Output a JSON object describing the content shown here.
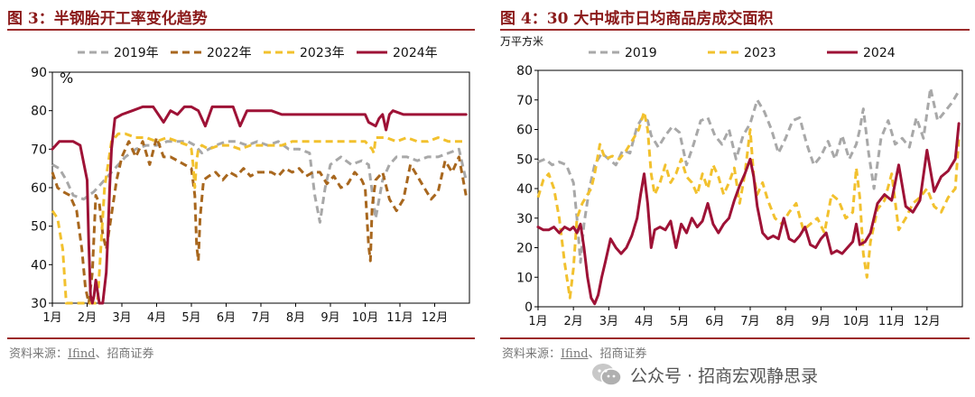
{
  "left": {
    "title": "图 3：半钢胎开工率变化趋势",
    "source_prefix": "资料来源：",
    "source_link": "Ifind",
    "source_suffix": "、招商证券",
    "chart_data": {
      "type": "line",
      "ylabel": "%",
      "ylim": [
        30,
        90
      ],
      "yticks": [
        30,
        40,
        50,
        60,
        70,
        80,
        90
      ],
      "x_unit": "month",
      "xlim": [
        1,
        13
      ],
      "xticks": [
        "1月",
        "2月",
        "3月",
        "4月",
        "5月",
        "6月",
        "7月",
        "8月",
        "9月",
        "10月",
        "11月",
        "12月"
      ],
      "legend_position": "top",
      "grid": false,
      "series": [
        {
          "name": "2019年",
          "color": "#a8a8a8",
          "dash": true,
          "x": [
            1.0,
            1.2,
            1.4,
            1.6,
            1.9,
            2.2,
            2.5,
            2.8,
            3.1,
            3.4,
            3.7,
            4.0,
            4.3,
            4.6,
            4.9,
            5.1,
            5.3,
            5.5,
            5.7,
            6.0,
            6.3,
            6.6,
            6.9,
            7.2,
            7.5,
            7.8,
            8.1,
            8.4,
            8.55,
            8.7,
            8.85,
            9.0,
            9.3,
            9.6,
            9.9,
            10.1,
            10.3,
            10.5,
            10.7,
            10.9,
            11.2,
            11.5,
            11.8,
            12.1,
            12.4,
            12.7,
            12.9
          ],
          "y": [
            66,
            65,
            62,
            58,
            57,
            59,
            62,
            65,
            68,
            70,
            71,
            71,
            72,
            72,
            72,
            71,
            69,
            70,
            71,
            72,
            72,
            71,
            72,
            71,
            72,
            70,
            70,
            69,
            58,
            51,
            60,
            66,
            68,
            66,
            67,
            66,
            52,
            62,
            66,
            68,
            68,
            67,
            68,
            68,
            69,
            70,
            62
          ]
        },
        {
          "name": "2022年",
          "color": "#a8671e",
          "dash": true,
          "x": [
            1.0,
            1.15,
            1.3,
            1.5,
            1.7,
            1.85,
            1.95,
            2.05,
            2.15,
            2.25,
            2.35,
            2.45,
            2.55,
            2.7,
            2.85,
            3.0,
            3.2,
            3.4,
            3.6,
            3.8,
            4.0,
            4.2,
            4.4,
            4.6,
            4.8,
            5.0,
            5.1,
            5.15,
            5.2,
            5.25,
            5.35,
            5.5,
            5.7,
            5.9,
            6.1,
            6.3,
            6.5,
            6.7,
            6.9,
            7.1,
            7.3,
            7.5,
            7.7,
            7.9,
            8.1,
            8.3,
            8.5,
            8.7,
            8.9,
            9.1,
            9.3,
            9.5,
            9.7,
            9.9,
            10.0,
            10.1,
            10.15,
            10.2,
            10.3,
            10.5,
            10.7,
            10.9,
            11.1,
            11.3,
            11.5,
            11.7,
            11.9,
            12.1,
            12.3,
            12.5,
            12.7,
            12.9
          ],
          "y": [
            64,
            60,
            59,
            58,
            54,
            44,
            34,
            30,
            38,
            58,
            56,
            48,
            44,
            53,
            62,
            68,
            72,
            68,
            72,
            66,
            73,
            68,
            68,
            67,
            66,
            65,
            58,
            45,
            41,
            52,
            62,
            63,
            64,
            62,
            64,
            63,
            65,
            63,
            64,
            64,
            64,
            63,
            65,
            64,
            65,
            63,
            64,
            64,
            61,
            63,
            60,
            61,
            64,
            62,
            60,
            45,
            41,
            55,
            62,
            64,
            57,
            54,
            57,
            66,
            63,
            60,
            57,
            59,
            67,
            64,
            68,
            58
          ]
        },
        {
          "name": "2023年",
          "color": "#f2c12e",
          "dash": true,
          "x": [
            1.0,
            1.15,
            1.3,
            1.4,
            1.5,
            1.6,
            1.75,
            1.85,
            1.95,
            2.1,
            2.3,
            2.5,
            2.7,
            2.9,
            3.1,
            3.4,
            3.7,
            4.0,
            4.3,
            4.6,
            4.9,
            5.0,
            5.05,
            5.1,
            5.15,
            5.2,
            5.3,
            5.5,
            5.8,
            6.1,
            6.4,
            6.7,
            7.0,
            7.3,
            7.6,
            7.9,
            8.2,
            8.5,
            8.8,
            9.1,
            9.4,
            9.7,
            10.0,
            10.2,
            10.25,
            10.3,
            10.4,
            10.6,
            10.9,
            11.2,
            11.5,
            11.8,
            12.1,
            12.4,
            12.7,
            12.9
          ],
          "y": [
            54,
            52,
            44,
            30,
            30,
            30,
            30,
            30,
            30,
            30,
            30,
            60,
            72,
            74,
            74,
            73,
            73,
            72,
            73,
            72,
            71,
            70,
            66,
            60,
            67,
            70,
            71,
            70,
            71,
            71,
            70,
            71,
            71,
            71,
            71,
            72,
            72,
            72,
            72,
            72,
            72,
            72,
            72,
            70,
            69,
            73,
            73,
            73,
            72,
            73,
            72,
            72,
            73,
            72,
            72,
            72
          ]
        },
        {
          "name": "2024年",
          "color": "#9e1236",
          "dash": false,
          "x": [
            1.0,
            1.2,
            1.4,
            1.6,
            1.8,
            2.0,
            2.05,
            2.1,
            2.15,
            2.2,
            2.25,
            2.35,
            2.45,
            2.55,
            2.6,
            2.65,
            2.7,
            2.8,
            3.0,
            3.3,
            3.6,
            3.9,
            4.2,
            4.4,
            4.6,
            4.8,
            5.0,
            5.2,
            5.4,
            5.6,
            5.8,
            6.0,
            6.2,
            6.4,
            6.6,
            6.8,
            7.0,
            7.3,
            7.6,
            7.9,
            8.2,
            8.5,
            8.8,
            9.1,
            9.4,
            9.7,
            10.0,
            10.1,
            10.3,
            10.4,
            10.5,
            10.6,
            10.7,
            10.8,
            11.1,
            11.4,
            11.7,
            12.0,
            12.3,
            12.6,
            12.9
          ],
          "y": [
            70,
            72,
            72,
            72,
            71,
            62,
            45,
            32,
            30,
            32,
            36,
            30,
            30,
            38,
            48,
            60,
            70,
            78,
            79,
            80,
            81,
            81,
            77,
            80,
            79,
            81,
            81,
            80,
            76,
            81,
            81,
            81,
            81,
            76,
            80,
            80,
            80,
            80,
            79,
            79,
            79,
            79,
            79,
            79,
            79,
            79,
            79,
            77,
            76,
            78,
            79,
            75,
            79,
            80,
            79,
            79,
            79,
            79,
            79,
            79,
            79
          ]
        }
      ]
    }
  },
  "right": {
    "title": "图 4：30 大中城市日均商品房成交面积",
    "source_prefix": "资料来源：",
    "source_link": "Ifind",
    "source_suffix": "、招商证券",
    "chart_data": {
      "type": "line",
      "ylabel": "万平方米",
      "ylim": [
        0,
        80
      ],
      "yticks": [
        0,
        10,
        20,
        30,
        40,
        50,
        60,
        70,
        80
      ],
      "x_unit": "month",
      "xlim": [
        1,
        13
      ],
      "xticks": [
        "1月",
        "2月",
        "3月",
        "4月",
        "5月",
        "6月",
        "7月",
        "8月",
        "9月",
        "10月",
        "11月",
        "12月"
      ],
      "legend_position": "top",
      "grid": false,
      "series": [
        {
          "name": "2019",
          "color": "#a8a8a8",
          "dash": true,
          "x": [
            1.0,
            1.2,
            1.4,
            1.6,
            1.8,
            2.0,
            2.1,
            2.2,
            2.3,
            2.45,
            2.6,
            2.8,
            3.0,
            3.2,
            3.4,
            3.6,
            3.8,
            3.95,
            4.1,
            4.2,
            4.4,
            4.6,
            4.8,
            5.0,
            5.2,
            5.4,
            5.6,
            5.8,
            6.0,
            6.2,
            6.4,
            6.6,
            6.8,
            7.0,
            7.2,
            7.4,
            7.6,
            7.8,
            8.0,
            8.2,
            8.4,
            8.6,
            8.8,
            9.0,
            9.2,
            9.4,
            9.6,
            9.8,
            10.0,
            10.1,
            10.2,
            10.35,
            10.5,
            10.7,
            10.9,
            11.1,
            11.3,
            11.5,
            11.7,
            11.9,
            12.1,
            12.3,
            12.5,
            12.7,
            12.9
          ],
          "y": [
            49,
            50,
            48,
            49,
            48,
            42,
            30,
            15,
            28,
            40,
            48,
            52,
            50,
            48,
            53,
            52,
            61,
            64,
            63,
            58,
            54,
            58,
            61,
            59,
            48,
            55,
            63,
            64,
            58,
            55,
            60,
            50,
            58,
            62,
            70,
            66,
            60,
            52,
            57,
            63,
            64,
            55,
            48,
            51,
            56,
            50,
            58,
            50,
            55,
            60,
            67,
            52,
            40,
            57,
            63,
            55,
            57,
            54,
            64,
            57,
            74,
            63,
            66,
            69,
            73
          ]
        },
        {
          "name": "2023",
          "color": "#f2c12e",
          "dash": true,
          "x": [
            1.0,
            1.15,
            1.3,
            1.45,
            1.6,
            1.75,
            1.9,
            2.0,
            2.1,
            2.25,
            2.4,
            2.5,
            2.6,
            2.75,
            2.9,
            3.1,
            3.3,
            3.5,
            3.7,
            3.85,
            4.0,
            4.1,
            4.2,
            4.3,
            4.45,
            4.6,
            4.75,
            4.9,
            5.05,
            5.2,
            5.35,
            5.5,
            5.65,
            5.8,
            5.95,
            6.1,
            6.25,
            6.4,
            6.55,
            6.7,
            6.85,
            7.0,
            7.1,
            7.2,
            7.35,
            7.5,
            7.7,
            7.9,
            8.1,
            8.3,
            8.5,
            8.7,
            8.9,
            9.1,
            9.3,
            9.5,
            9.7,
            9.9,
            10.0,
            10.1,
            10.2,
            10.3,
            10.4,
            10.6,
            10.8,
            11.0,
            11.2,
            11.4,
            11.6,
            11.8,
            12.0,
            12.2,
            12.4,
            12.6,
            12.8,
            12.9
          ],
          "y": [
            37,
            43,
            45,
            40,
            30,
            15,
            3,
            13,
            30,
            35,
            38,
            40,
            45,
            55,
            50,
            51,
            50,
            53,
            57,
            60,
            66,
            60,
            45,
            38,
            42,
            48,
            42,
            45,
            50,
            44,
            42,
            38,
            45,
            40,
            48,
            44,
            38,
            42,
            47,
            35,
            45,
            60,
            44,
            38,
            42,
            36,
            30,
            28,
            32,
            35,
            26,
            28,
            30,
            25,
            38,
            36,
            30,
            32,
            47,
            37,
            18,
            10,
            22,
            33,
            36,
            45,
            26,
            30,
            35,
            37,
            40,
            34,
            32,
            37,
            40,
            57
          ]
        },
        {
          "name": "2024",
          "color": "#9e1236",
          "dash": false,
          "x": [
            1.0,
            1.15,
            1.3,
            1.45,
            1.6,
            1.75,
            1.9,
            2.0,
            2.1,
            2.2,
            2.3,
            2.4,
            2.5,
            2.6,
            2.7,
            2.8,
            2.9,
            3.05,
            3.2,
            3.35,
            3.5,
            3.65,
            3.8,
            3.9,
            4.0,
            4.1,
            4.2,
            4.3,
            4.45,
            4.6,
            4.75,
            4.9,
            5.05,
            5.2,
            5.35,
            5.5,
            5.65,
            5.8,
            5.95,
            6.1,
            6.25,
            6.4,
            6.55,
            6.7,
            6.85,
            7.0,
            7.1,
            7.2,
            7.35,
            7.5,
            7.65,
            7.8,
            7.95,
            8.1,
            8.25,
            8.4,
            8.55,
            8.7,
            8.85,
            9.0,
            9.15,
            9.3,
            9.45,
            9.6,
            9.75,
            9.9,
            10.0,
            10.1,
            10.25,
            10.4,
            10.6,
            10.8,
            11.0,
            11.2,
            11.4,
            11.6,
            11.8,
            12.0,
            12.2,
            12.4,
            12.6,
            12.8,
            12.9
          ],
          "y": [
            27,
            26,
            26,
            27,
            25,
            27,
            26,
            27,
            25,
            28,
            20,
            10,
            3,
            1,
            4,
            10,
            15,
            23,
            20,
            18,
            20,
            24,
            30,
            38,
            45,
            35,
            20,
            26,
            27,
            26,
            29,
            20,
            28,
            25,
            30,
            27,
            29,
            35,
            28,
            25,
            28,
            30,
            36,
            41,
            45,
            50,
            44,
            34,
            25,
            23,
            24,
            23,
            30,
            23,
            22,
            24,
            27,
            21,
            20,
            23,
            25,
            18,
            19,
            18,
            20,
            22,
            28,
            21,
            22,
            25,
            35,
            38,
            36,
            48,
            34,
            32,
            36,
            53,
            39,
            44,
            46,
            50,
            62
          ]
        }
      ]
    }
  },
  "watermark": {
    "text": "公众号 · 招商宏观静思录",
    "icon": "wechat-icon"
  }
}
